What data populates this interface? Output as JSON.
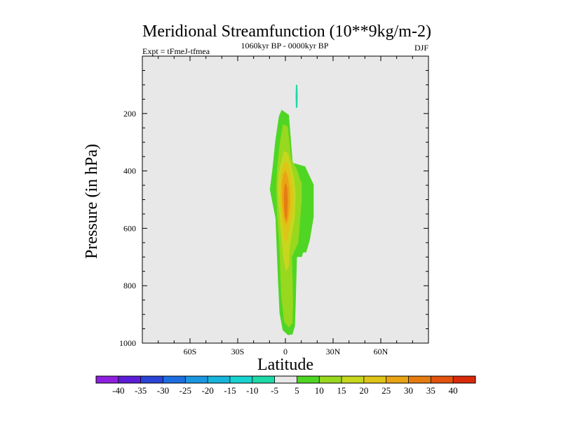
{
  "chart_data": {
    "type": "contour",
    "title": "Meridional Streamfunction (10**9kg/m-2)",
    "subtitle": "1060kyr BP - 0000kyr BP",
    "left_label": "Expt = tFmeJ-tfmea",
    "right_label": "DJF",
    "xlabel": "Latitude",
    "ylabel": "Pressure (in hPa)",
    "xlim": [
      -90,
      90
    ],
    "ylim": [
      1000,
      0
    ],
    "x_ticks": [
      {
        "value": -60,
        "label": "60S"
      },
      {
        "value": -30,
        "label": "30S"
      },
      {
        "value": 0,
        "label": "0"
      },
      {
        "value": 30,
        "label": "30N"
      },
      {
        "value": 60,
        "label": "60N"
      }
    ],
    "y_ticks": [
      {
        "value": 200,
        "label": "200"
      },
      {
        "value": 400,
        "label": "400"
      },
      {
        "value": 600,
        "label": "600"
      },
      {
        "value": 800,
        "label": "800"
      },
      {
        "value": 1000,
        "label": "1000"
      }
    ],
    "background_color": "#e8e8e8",
    "contour_levels": [
      -40,
      -35,
      -30,
      -25,
      -20,
      -15,
      -10,
      -5,
      5,
      10,
      15,
      20,
      25,
      30,
      35,
      40
    ],
    "colorbar_colors": [
      "#8f1fe0",
      "#5d1dd8",
      "#2a43d6",
      "#1d6ee0",
      "#1b96e0",
      "#17b5db",
      "#19d3d0",
      "#1ed9a8",
      "#e8e8e8",
      "#4fd624",
      "#98d81e",
      "#c6d71e",
      "#dfc418",
      "#e8a414",
      "#e57c12",
      "#e1530f",
      "#d92a0a"
    ],
    "regions": [
      {
        "name": "region-5-10-main",
        "level": "5 to 10",
        "color": "#4fd624",
        "points": [
          [
            -2.4,
            187
          ],
          [
            0,
            196
          ],
          [
            2.2,
            205
          ],
          [
            4.6,
            372
          ],
          [
            12.4,
            384
          ],
          [
            17.8,
            448
          ],
          [
            17.8,
            560
          ],
          [
            15.4,
            640
          ],
          [
            13.1,
            684
          ],
          [
            11.2,
            684
          ],
          [
            10.3,
            700
          ],
          [
            7.3,
            700
          ],
          [
            6.4,
            875
          ],
          [
            6.0,
            940
          ],
          [
            4.4,
            970
          ],
          [
            1.6,
            972
          ],
          [
            -1.7,
            955
          ],
          [
            -3.7,
            895
          ],
          [
            -4.6,
            790
          ],
          [
            -5.3,
            698
          ],
          [
            -6.2,
            565
          ],
          [
            -9.8,
            465
          ],
          [
            -8.2,
            395
          ],
          [
            -6.4,
            296
          ],
          [
            -4.1,
            210
          ]
        ]
      },
      {
        "name": "region-10-15",
        "level": "10 to 15",
        "color": "#98d81e",
        "points": [
          [
            -1.6,
            238
          ],
          [
            1.4,
            244
          ],
          [
            3.6,
            356
          ],
          [
            7.2,
            395
          ],
          [
            10.3,
            446
          ],
          [
            10.3,
            500
          ],
          [
            8.1,
            650
          ],
          [
            4.1,
            700
          ],
          [
            4.5,
            780
          ],
          [
            4.8,
            860
          ],
          [
            4.5,
            930
          ],
          [
            2.1,
            946
          ],
          [
            -0.8,
            925
          ],
          [
            -2.7,
            830
          ],
          [
            -3.3,
            742
          ],
          [
            -3.9,
            650
          ],
          [
            -5.2,
            560
          ],
          [
            -5.8,
            446
          ],
          [
            -5.2,
            390
          ],
          [
            -3.5,
            300
          ]
        ]
      },
      {
        "name": "region-15-20",
        "level": "15 to 20",
        "color": "#c6d71e",
        "points": [
          [
            -0.9,
            330
          ],
          [
            1.6,
            338
          ],
          [
            3.8,
            384
          ],
          [
            5.6,
            430
          ],
          [
            6.5,
            480
          ],
          [
            6.0,
            560
          ],
          [
            3.8,
            630
          ],
          [
            2.6,
            678
          ],
          [
            2.3,
            730
          ],
          [
            0.3,
            750
          ],
          [
            -1.4,
            702
          ],
          [
            -2.4,
            640
          ],
          [
            -3.7,
            560
          ],
          [
            -4.8,
            470
          ],
          [
            -4.3,
            408
          ],
          [
            -2.3,
            360
          ]
        ]
      },
      {
        "name": "region-20-25",
        "level": "20 to 25",
        "color": "#dfc418",
        "points": [
          [
            -0.4,
            365
          ],
          [
            1.6,
            374
          ],
          [
            3.4,
            420
          ],
          [
            4.8,
            470
          ],
          [
            4.4,
            540
          ],
          [
            2.6,
            600
          ],
          [
            1.3,
            640
          ],
          [
            -0.2,
            650
          ],
          [
            -1.6,
            605
          ],
          [
            -3.1,
            530
          ],
          [
            -3.7,
            450
          ],
          [
            -2.5,
            398
          ]
        ]
      },
      {
        "name": "region-25-30",
        "level": "25 to 30",
        "color": "#e8a414",
        "points": [
          [
            0.0,
            398
          ],
          [
            1.5,
            420
          ],
          [
            2.7,
            460
          ],
          [
            2.9,
            520
          ],
          [
            1.8,
            570
          ],
          [
            0.4,
            588
          ],
          [
            -1.2,
            560
          ],
          [
            -2.2,
            500
          ],
          [
            -2.3,
            444
          ],
          [
            -1.3,
            410
          ]
        ]
      },
      {
        "name": "region-30-35",
        "level": "30 to 35",
        "color": "#e57c12",
        "points": [
          [
            0.2,
            440
          ],
          [
            1.1,
            460
          ],
          [
            1.5,
            510
          ],
          [
            1.0,
            560
          ],
          [
            0.2,
            572
          ],
          [
            -0.7,
            540
          ],
          [
            -1.0,
            490
          ],
          [
            -0.6,
            455
          ]
        ]
      },
      {
        "name": "region-neg-5-10-top",
        "level": "-10 to -5",
        "color": "#1ed9a8",
        "points": [
          [
            6.6,
            100
          ],
          [
            7.5,
            100
          ],
          [
            7.7,
            135
          ],
          [
            7.6,
            178
          ],
          [
            6.6,
            182
          ],
          [
            6.4,
            140
          ]
        ]
      }
    ]
  }
}
